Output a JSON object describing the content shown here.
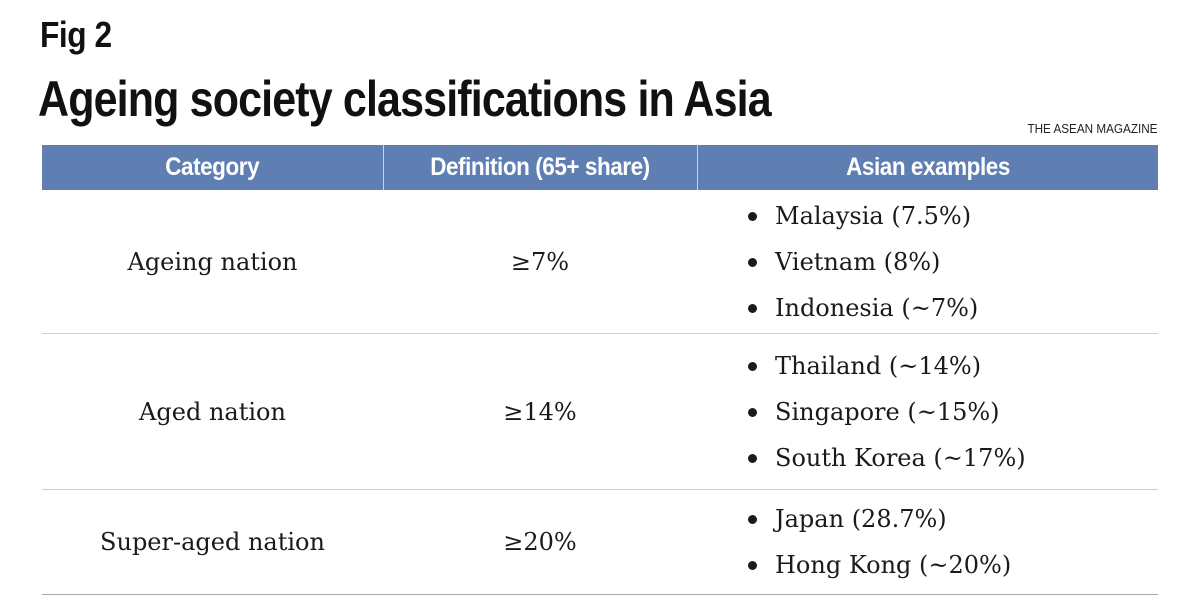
{
  "figure": {
    "label": "Fig 2",
    "title": "Ageing society classifications in Asia",
    "source": "THE ASEAN MAGAZINE"
  },
  "table": {
    "headers": [
      "Category",
      "Definition (65+ share)",
      "Asian examples"
    ],
    "rows": [
      {
        "category": "Ageing nation",
        "definition": "≥7%",
        "examples": [
          "Malaysia (7.5%)",
          "Vietnam (8%)",
          "Indonesia (~7%)"
        ]
      },
      {
        "category": "Aged nation",
        "definition": "≥14%",
        "examples": [
          "Thailand (~14%)",
          "Singapore (~15%)",
          "South Korea (~17%)"
        ]
      },
      {
        "category": "Super-aged nation",
        "definition": "≥20%",
        "examples": [
          "Japan (28.7%)",
          "Hong Kong (~20%)"
        ]
      }
    ]
  },
  "colors": {
    "header_bg": "#5f7fb3",
    "header_text": "#ffffff",
    "row_divider": "#cfcfcf"
  }
}
